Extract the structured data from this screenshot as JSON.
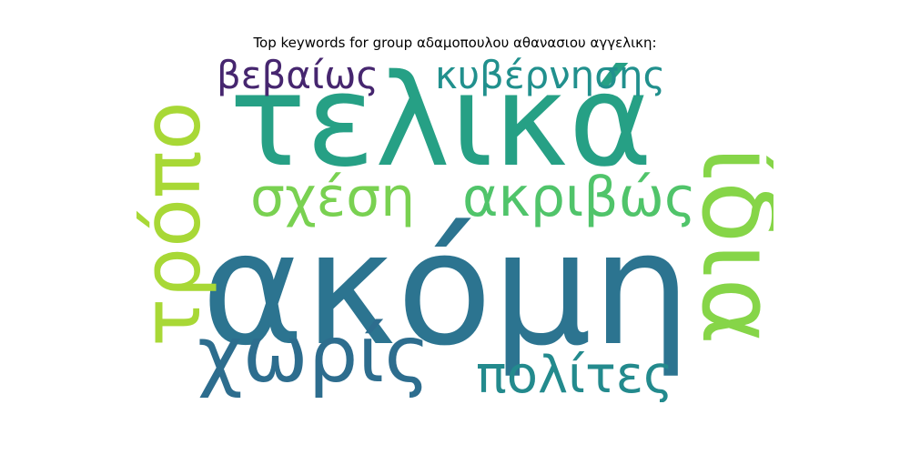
{
  "title": "Top keywords for group αδαμοπουλου αθανασιου αγγελικη:",
  "words": [
    {
      "text": "ακόμη",
      "color": "#2c7490",
      "rotated": false
    },
    {
      "text": "τελικά",
      "color": "#26a085",
      "rotated": false
    },
    {
      "text": "ίδια",
      "color": "#86d548",
      "rotated": true
    },
    {
      "text": "τρόπο",
      "color": "#a8d836",
      "rotated": true
    },
    {
      "text": "χωρίς",
      "color": "#2d6d8e",
      "rotated": false
    },
    {
      "text": "σχέση",
      "color": "#79d151",
      "rotated": false
    },
    {
      "text": "ακριβώς",
      "color": "#50c46a",
      "rotated": false
    },
    {
      "text": "πολίτες",
      "color": "#238a8d",
      "rotated": false
    },
    {
      "text": "κυβέρνησης",
      "color": "#21908d",
      "rotated": false
    },
    {
      "text": "βεβαίως",
      "color": "#46266f",
      "rotated": false
    }
  ]
}
